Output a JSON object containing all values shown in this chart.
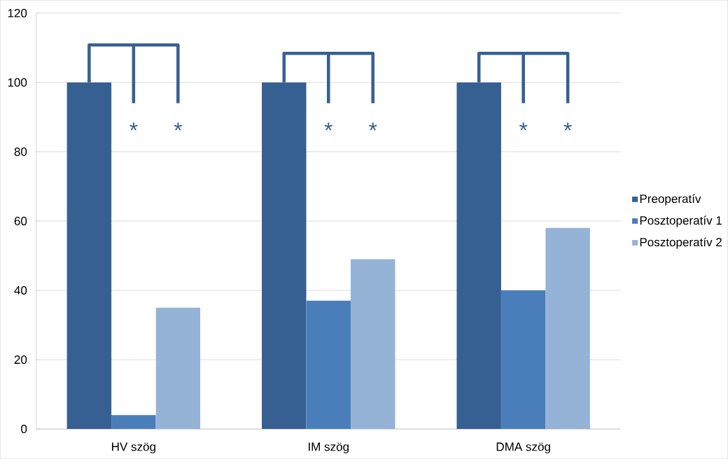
{
  "chart_data": {
    "type": "bar",
    "categories": [
      "HV szög",
      "IM szög",
      "DMA szög"
    ],
    "series": [
      {
        "name": "Preoperatív",
        "color": "#366092",
        "values": [
          100,
          100,
          100
        ]
      },
      {
        "name": "Posztoperatív 1",
        "color": "#4a7ebb",
        "values": [
          4,
          37,
          40
        ]
      },
      {
        "name": "Posztoperatív 2",
        "color": "#95b3d7",
        "values": [
          35,
          49,
          58
        ]
      }
    ],
    "ylim": [
      0,
      120
    ],
    "yticks": [
      0,
      20,
      40,
      60,
      80,
      100,
      120
    ],
    "grid": "y",
    "legend": "right",
    "annotations": [
      {
        "text": "*",
        "x": "HV szög"
      },
      "*",
      {
        "text": "*",
        "x": "IM szög"
      },
      "*",
      {
        "text": "*",
        "x": "DMA szög"
      },
      "*"
    ]
  }
}
